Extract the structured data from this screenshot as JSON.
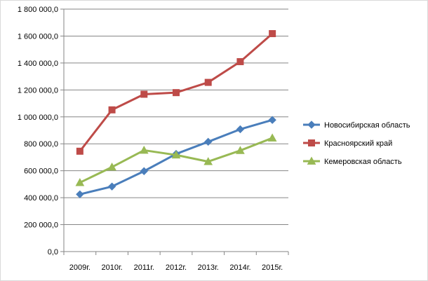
{
  "chart_data": {
    "type": "line",
    "title": "",
    "xlabel": "",
    "ylabel": "",
    "categories": [
      "2009г.",
      "2010г.",
      "2011г.",
      "2012г.",
      "2013г.",
      "2014г.",
      "2015г."
    ],
    "ylim": [
      0,
      1800000
    ],
    "y_ticks": [
      0,
      200000,
      400000,
      600000,
      800000,
      1000000,
      1200000,
      1400000,
      1600000,
      1800000
    ],
    "y_tick_labels": [
      "0,0",
      "200 000,0",
      "400 000,0",
      "600 000,0",
      "800 000,0",
      "1 000 000,0",
      "1 200 000,0",
      "1 400 000,0",
      "1 600 000,0",
      "1 800 000,0"
    ],
    "grid": "horizontal",
    "legend_position": "right",
    "series": [
      {
        "name": "Новосибирская область",
        "color": "#4a7ebb",
        "marker": "diamond",
        "values": [
          425000,
          483000,
          597000,
          725000,
          815000,
          908000,
          977000
        ]
      },
      {
        "name": "Красноярский край",
        "color": "#be4b48",
        "marker": "square",
        "values": [
          745000,
          1052000,
          1168000,
          1180000,
          1256000,
          1410000,
          1618000
        ]
      },
      {
        "name": "Кемеровская область",
        "color": "#98b954",
        "marker": "triangle",
        "values": [
          512000,
          627000,
          752000,
          717000,
          668000,
          750000,
          843000
        ]
      }
    ]
  }
}
